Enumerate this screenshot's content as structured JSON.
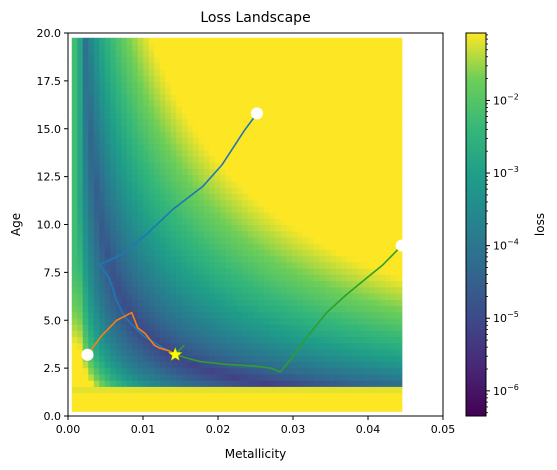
{
  "chart_data": {
    "type": "heatmap",
    "title": "Loss Landscape",
    "xlabel": "Metallicity",
    "ylabel": "Age",
    "xlim": [
      0.0,
      0.05
    ],
    "ylim": [
      0.0,
      20.0
    ],
    "xticks": [
      0.0,
      0.01,
      0.02,
      0.03,
      0.04,
      0.05
    ],
    "xtick_labels": [
      "0.00",
      "0.01",
      "0.02",
      "0.03",
      "0.04",
      "0.05"
    ],
    "yticks": [
      0.0,
      2.5,
      5.0,
      7.5,
      10.0,
      12.5,
      15.0,
      17.5,
      20.0
    ],
    "ytick_labels": [
      "0.0",
      "2.5",
      "5.0",
      "7.5",
      "10.0",
      "12.5",
      "15.0",
      "17.5",
      "20.0"
    ],
    "heatmap_extent": {
      "x": [
        0.0005,
        0.0445
      ],
      "y": [
        0.25,
        19.75
      ]
    },
    "colormap": "viridis",
    "colorbar": {
      "label": "loss",
      "scale": "log",
      "range": [
        4.5e-07,
        0.085
      ],
      "ticks": [
        {
          "value": 1e-06,
          "base": "10",
          "exp": "−6"
        },
        {
          "value": 1e-05,
          "base": "10",
          "exp": "−5"
        },
        {
          "value": 0.0001,
          "base": "10",
          "exp": "−4"
        },
        {
          "value": 0.001,
          "base": "10",
          "exp": "−3"
        },
        {
          "value": 0.01,
          "base": "10",
          "exp": "−2"
        }
      ]
    },
    "trajectories": [
      {
        "color": "#1f77b4",
        "points": [
          [
            0.0252,
            15.8
          ],
          [
            0.0235,
            14.9
          ],
          [
            0.022,
            14.0
          ],
          [
            0.0205,
            13.1
          ],
          [
            0.018,
            12.0
          ],
          [
            0.014,
            10.8
          ],
          [
            0.0105,
            9.5
          ],
          [
            0.007,
            8.4
          ],
          [
            0.0042,
            7.9
          ],
          [
            0.0055,
            7.2
          ],
          [
            0.0065,
            6.0
          ],
          [
            0.0075,
            5.2
          ],
          [
            0.01,
            4.2
          ],
          [
            0.0125,
            3.6
          ],
          [
            0.0143,
            3.2
          ]
        ]
      },
      {
        "color": "#ff7f0e",
        "points": [
          [
            0.0026,
            3.2
          ],
          [
            0.0045,
            4.2
          ],
          [
            0.0065,
            5.0
          ],
          [
            0.0085,
            5.4
          ],
          [
            0.0093,
            4.6
          ],
          [
            0.0103,
            4.3
          ],
          [
            0.011,
            3.95
          ],
          [
            0.0115,
            3.7
          ],
          [
            0.0122,
            3.55
          ],
          [
            0.0135,
            3.4
          ],
          [
            0.0143,
            3.2
          ]
        ]
      },
      {
        "color": "#2ca02c",
        "points": [
          [
            0.0445,
            8.9
          ],
          [
            0.042,
            7.9
          ],
          [
            0.0395,
            7.1
          ],
          [
            0.037,
            6.3
          ],
          [
            0.0345,
            5.4
          ],
          [
            0.032,
            4.2
          ],
          [
            0.0298,
            3.0
          ],
          [
            0.0283,
            2.3
          ],
          [
            0.027,
            2.5
          ],
          [
            0.025,
            2.6
          ],
          [
            0.021,
            2.7
          ],
          [
            0.0175,
            2.85
          ],
          [
            0.0143,
            3.2
          ],
          [
            0.0155,
            3.7
          ]
        ]
      }
    ],
    "start_points": [
      [
        0.0252,
        15.8
      ],
      [
        0.0026,
        3.2
      ],
      [
        0.0445,
        8.9
      ]
    ],
    "optimum": [
      0.0143,
      3.2
    ]
  }
}
